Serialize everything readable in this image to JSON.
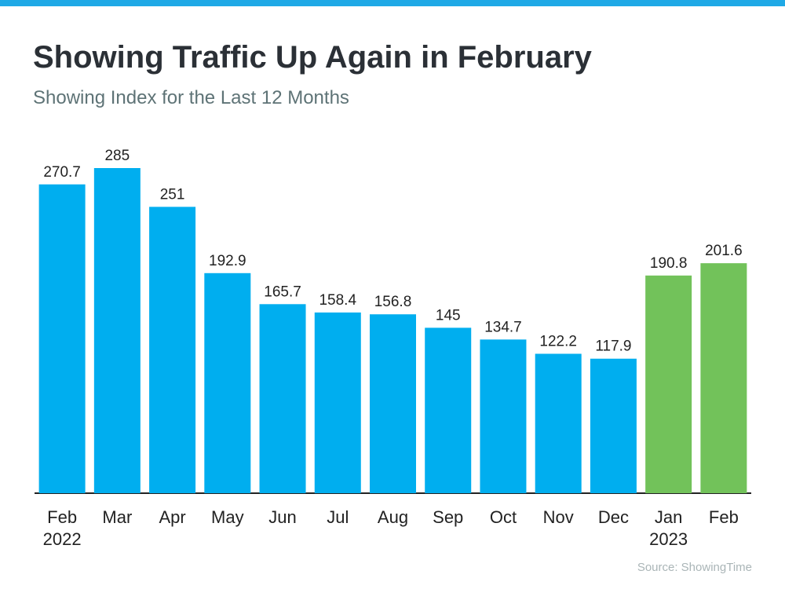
{
  "chart_data": {
    "type": "bar",
    "title": "Showing Traffic Up Again in February",
    "subtitle": "Showing Index for the Last 12 Months",
    "source": "Source: ShowingTime",
    "categories": [
      "Feb\n2022",
      "Mar",
      "Apr",
      "May",
      "Jun",
      "Jul",
      "Aug",
      "Sep",
      "Oct",
      "Nov",
      "Dec",
      "Jan\n2023",
      "Feb"
    ],
    "values": [
      270.7,
      285,
      251,
      192.9,
      165.7,
      158.4,
      156.8,
      145,
      134.7,
      122.2,
      117.9,
      190.8,
      201.6
    ],
    "colors": [
      "#00aeef",
      "#00aeef",
      "#00aeef",
      "#00aeef",
      "#00aeef",
      "#00aeef",
      "#00aeef",
      "#00aeef",
      "#00aeef",
      "#00aeef",
      "#00aeef",
      "#72c25a",
      "#72c25a"
    ]
  }
}
